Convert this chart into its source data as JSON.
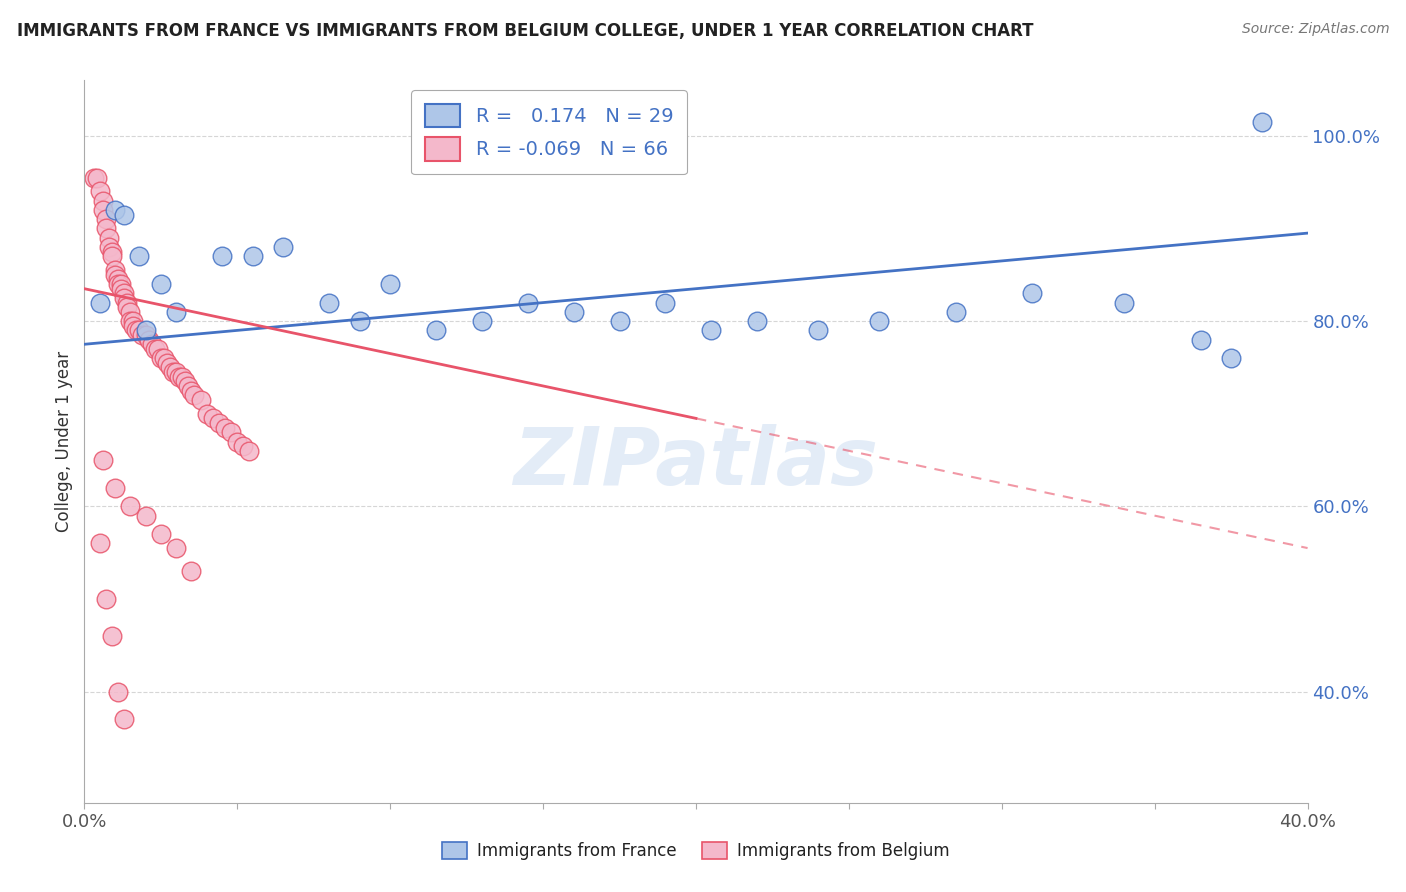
{
  "title": "IMMIGRANTS FROM FRANCE VS IMMIGRANTS FROM BELGIUM COLLEGE, UNDER 1 YEAR CORRELATION CHART",
  "source": "Source: ZipAtlas.com",
  "ylabel": "College, Under 1 year",
  "xlim": [
    0.0,
    0.4
  ],
  "ylim": [
    0.28,
    1.06
  ],
  "x_ticks": [
    0.0,
    0.05,
    0.1,
    0.15,
    0.2,
    0.25,
    0.3,
    0.35,
    0.4
  ],
  "x_tick_labels": [
    "0.0%",
    "",
    "",
    "",
    "",
    "",
    "",
    "",
    "40.0%"
  ],
  "y_ticks": [
    0.4,
    0.6,
    0.8,
    1.0
  ],
  "y_tick_labels": [
    "40.0%",
    "60.0%",
    "80.0%",
    "100.0%"
  ],
  "legend_france_r": "0.174",
  "legend_france_n": "29",
  "legend_belgium_r": "-0.069",
  "legend_belgium_n": "66",
  "france_color": "#aec6e8",
  "belgium_color": "#f4b8cb",
  "france_edge_color": "#4472c4",
  "belgium_edge_color": "#e8546a",
  "watermark": "ZIPatlas",
  "fr_trend_x0": 0.0,
  "fr_trend_y0": 0.775,
  "fr_trend_x1": 0.4,
  "fr_trend_y1": 0.895,
  "be_trend_solid_x0": 0.0,
  "be_trend_solid_y0": 0.835,
  "be_trend_solid_x1": 0.2,
  "be_trend_solid_y1": 0.695,
  "be_trend_dash_x0": 0.2,
  "be_trend_dash_y0": 0.695,
  "be_trend_dash_x1": 0.4,
  "be_trend_dash_y1": 0.555,
  "fr_x": [
    0.005,
    0.01,
    0.013,
    0.018,
    0.02,
    0.025,
    0.03,
    0.045,
    0.055,
    0.065,
    0.08,
    0.09,
    0.1,
    0.115,
    0.13,
    0.145,
    0.16,
    0.175,
    0.19,
    0.205,
    0.22,
    0.24,
    0.26,
    0.285,
    0.31,
    0.34,
    0.365,
    0.375,
    0.385
  ],
  "fr_y": [
    0.82,
    0.92,
    0.915,
    0.87,
    0.79,
    0.84,
    0.81,
    0.87,
    0.87,
    0.88,
    0.82,
    0.8,
    0.84,
    0.79,
    0.8,
    0.82,
    0.81,
    0.8,
    0.82,
    0.79,
    0.8,
    0.79,
    0.8,
    0.81,
    0.83,
    0.82,
    0.78,
    0.76,
    1.015
  ],
  "be_x": [
    0.003,
    0.004,
    0.005,
    0.006,
    0.006,
    0.007,
    0.007,
    0.008,
    0.008,
    0.009,
    0.009,
    0.01,
    0.01,
    0.011,
    0.011,
    0.012,
    0.012,
    0.013,
    0.013,
    0.014,
    0.014,
    0.015,
    0.015,
    0.016,
    0.016,
    0.017,
    0.018,
    0.019,
    0.02,
    0.021,
    0.022,
    0.023,
    0.024,
    0.025,
    0.026,
    0.027,
    0.028,
    0.029,
    0.03,
    0.031,
    0.032,
    0.033,
    0.034,
    0.035,
    0.036,
    0.038,
    0.04,
    0.042,
    0.044,
    0.046,
    0.048,
    0.05,
    0.052,
    0.054,
    0.005,
    0.007,
    0.009,
    0.011,
    0.013,
    0.006,
    0.01,
    0.015,
    0.02,
    0.025,
    0.03,
    0.035
  ],
  "be_y": [
    0.955,
    0.955,
    0.94,
    0.93,
    0.92,
    0.91,
    0.9,
    0.89,
    0.88,
    0.875,
    0.87,
    0.855,
    0.85,
    0.845,
    0.84,
    0.84,
    0.835,
    0.83,
    0.825,
    0.82,
    0.815,
    0.81,
    0.8,
    0.8,
    0.795,
    0.79,
    0.79,
    0.785,
    0.785,
    0.78,
    0.775,
    0.77,
    0.77,
    0.76,
    0.76,
    0.755,
    0.75,
    0.745,
    0.745,
    0.74,
    0.74,
    0.735,
    0.73,
    0.725,
    0.72,
    0.715,
    0.7,
    0.695,
    0.69,
    0.685,
    0.68,
    0.67,
    0.665,
    0.66,
    0.56,
    0.5,
    0.46,
    0.4,
    0.37,
    0.65,
    0.62,
    0.6,
    0.59,
    0.57,
    0.555,
    0.53
  ]
}
